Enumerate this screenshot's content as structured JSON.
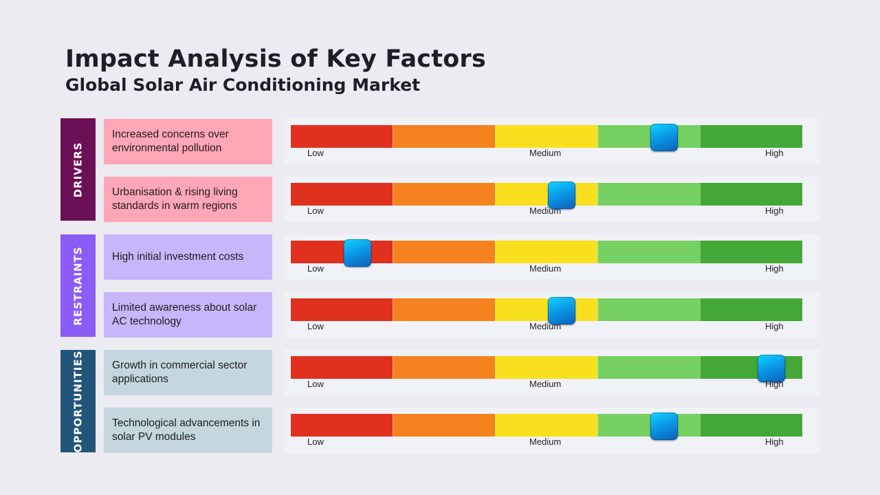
{
  "title": "Impact Analysis of Key Factors",
  "subtitle": "Global Solar Air Conditioning Market",
  "scale_labels": {
    "low": "Low",
    "medium": "Medium",
    "high": "High"
  },
  "scale_colors": [
    "#e0301e",
    "#f5821f",
    "#f9e01e",
    "#76d162",
    "#43a835"
  ],
  "categories": [
    {
      "label": "DRIVERS",
      "color": "#6b0f57",
      "factor_bg": "#ffa6b7"
    },
    {
      "label": "RESTRAINTS",
      "color": "#8b5cf6",
      "factor_bg": "#c8b6fb"
    },
    {
      "label": "OPPORTUNITIES",
      "color": "#23557a",
      "factor_bg": "#c4d7df"
    }
  ],
  "factors": [
    {
      "text": "Increased concerns over environmental pollution",
      "category": "DRIVERS",
      "impact": 0.73
    },
    {
      "text": "Urbanisation & rising living standards in warm regions",
      "category": "DRIVERS",
      "impact": 0.53
    },
    {
      "text": "High initial investment costs",
      "category": "RESTRAINTS",
      "impact": 0.13
    },
    {
      "text": "Limited awareness about solar AC technology",
      "category": "RESTRAINTS",
      "impact": 0.53
    },
    {
      "text": "Growth in commercial sector applications",
      "category": "OPPORTUNITIES",
      "impact": 0.94
    },
    {
      "text": "Technological advancements in solar PV modules",
      "category": "OPPORTUNITIES",
      "impact": 0.73
    }
  ]
}
